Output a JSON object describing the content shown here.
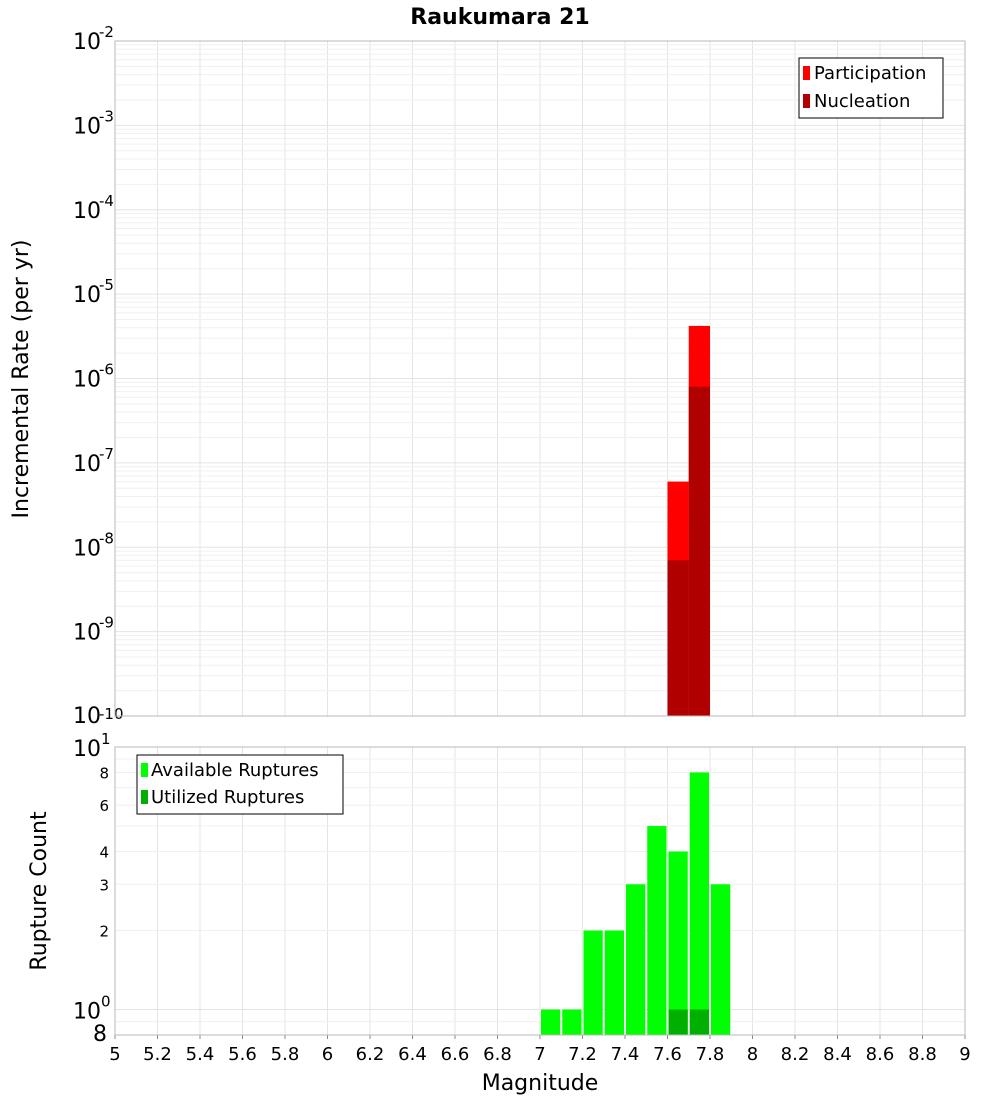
{
  "colors": {
    "participation": "#ff0000",
    "nucleation": "#b00000",
    "available": "#00ff00",
    "utilized": "#00b000",
    "grid_major": "#e4e4e4",
    "grid_minor": "#f0f0f0",
    "frame": "#b8b8b8"
  },
  "chart_data": [
    {
      "type": "bar",
      "title": "Raukumara 21",
      "ylabel": "Incremental Rate (per yr)",
      "xlabel": "",
      "yscale": "log",
      "ylim": [
        1e-10,
        0.01
      ],
      "xlim": [
        5,
        9
      ],
      "bin_width": 0.1,
      "y_tick_bases": [
        "10",
        "10",
        "10",
        "10",
        "10",
        "10",
        "10",
        "10",
        "10"
      ],
      "y_tick_exponents": [
        "-10",
        "-9",
        "-8",
        "-7",
        "-6",
        "-5",
        "-4",
        "-3",
        "-2"
      ],
      "legend_position": "top-right",
      "series": [
        {
          "name": "Participation",
          "x": [
            7.65,
            7.75
          ],
          "values": [
            6e-08,
            4.2e-06
          ]
        },
        {
          "name": "Nucleation",
          "x": [
            7.65,
            7.75
          ],
          "values": [
            7e-09,
            8e-07
          ]
        }
      ]
    },
    {
      "type": "bar",
      "title": "",
      "ylabel": "Rupture Count",
      "xlabel": "Magnitude",
      "yscale": "log",
      "ylim": [
        0.8,
        10
      ],
      "xlim": [
        5,
        9
      ],
      "bin_width": 0.1,
      "y_major_ticks": [
        {
          "base": "10",
          "exp": "0"
        },
        {
          "base": "10",
          "exp": "1"
        }
      ],
      "y_minor_tick_labels": [
        "8",
        "2",
        "3",
        "4",
        "6",
        "8"
      ],
      "x_tick_labels": [
        "5",
        "5.2",
        "5.4",
        "5.6",
        "5.8",
        "6",
        "6.2",
        "6.4",
        "6.6",
        "6.8",
        "7",
        "7.2",
        "7.4",
        "7.6",
        "7.8",
        "8",
        "8.2",
        "8.4",
        "8.6",
        "8.8",
        "9"
      ],
      "legend_position": "top-left",
      "series": [
        {
          "name": "Available Ruptures",
          "x": [
            7.05,
            7.15,
            7.25,
            7.35,
            7.45,
            7.55,
            7.65,
            7.75,
            7.85
          ],
          "values": [
            1,
            1,
            2,
            2,
            3,
            5,
            4,
            8,
            3
          ]
        },
        {
          "name": "Utilized Ruptures",
          "x": [
            7.65,
            7.75
          ],
          "values": [
            1,
            1
          ]
        }
      ]
    }
  ]
}
